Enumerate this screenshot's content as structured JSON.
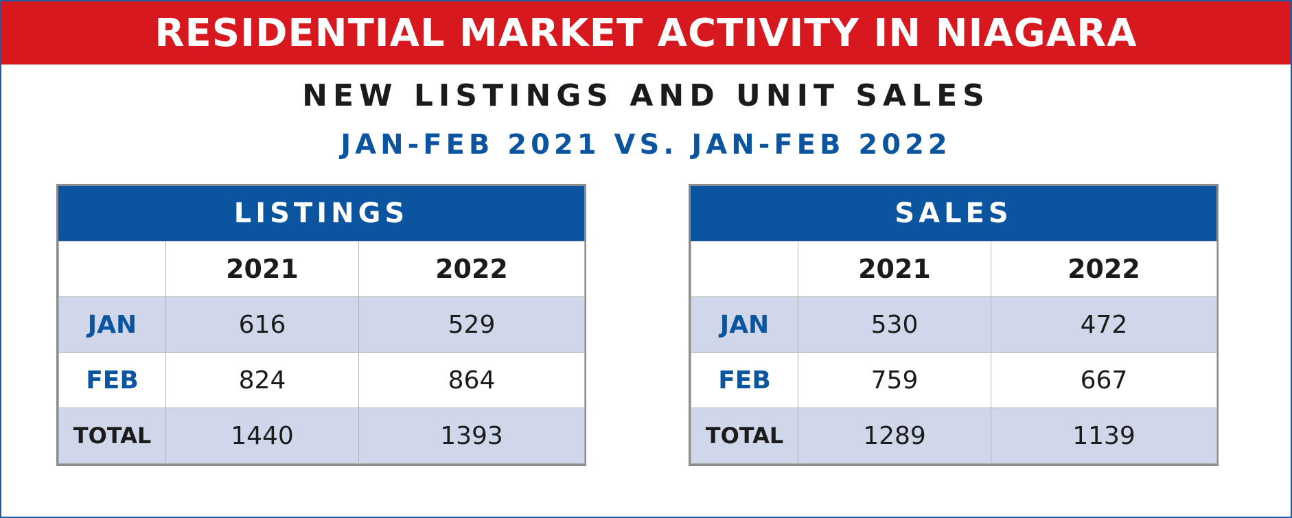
{
  "title": "RESIDENTIAL MARKET ACTIVITY IN NIAGARA",
  "subtitle": "NEW LISTINGS AND UNIT SALES",
  "period": "JAN-FEB 2021 VS. JAN-FEB 2022",
  "colors": {
    "banner": "#d7191f",
    "header": "#0a54a0",
    "shade": "#d1d7ea"
  },
  "chart_data": [
    {
      "type": "table",
      "title": "LISTINGS",
      "columns": [
        "",
        "2021",
        "2022"
      ],
      "rows": [
        {
          "label": "JAN",
          "values": [
            "616",
            "529"
          ]
        },
        {
          "label": "FEB",
          "values": [
            "824",
            "864"
          ]
        },
        {
          "label": "TOTAL",
          "values": [
            "1440",
            "1393"
          ]
        }
      ]
    },
    {
      "type": "table",
      "title": "SALES",
      "columns": [
        "",
        "2021",
        "2022"
      ],
      "rows": [
        {
          "label": "JAN",
          "values": [
            "530",
            "472"
          ]
        },
        {
          "label": "FEB",
          "values": [
            "759",
            "667"
          ]
        },
        {
          "label": "TOTAL",
          "values": [
            "1289",
            "1139"
          ]
        }
      ]
    }
  ]
}
